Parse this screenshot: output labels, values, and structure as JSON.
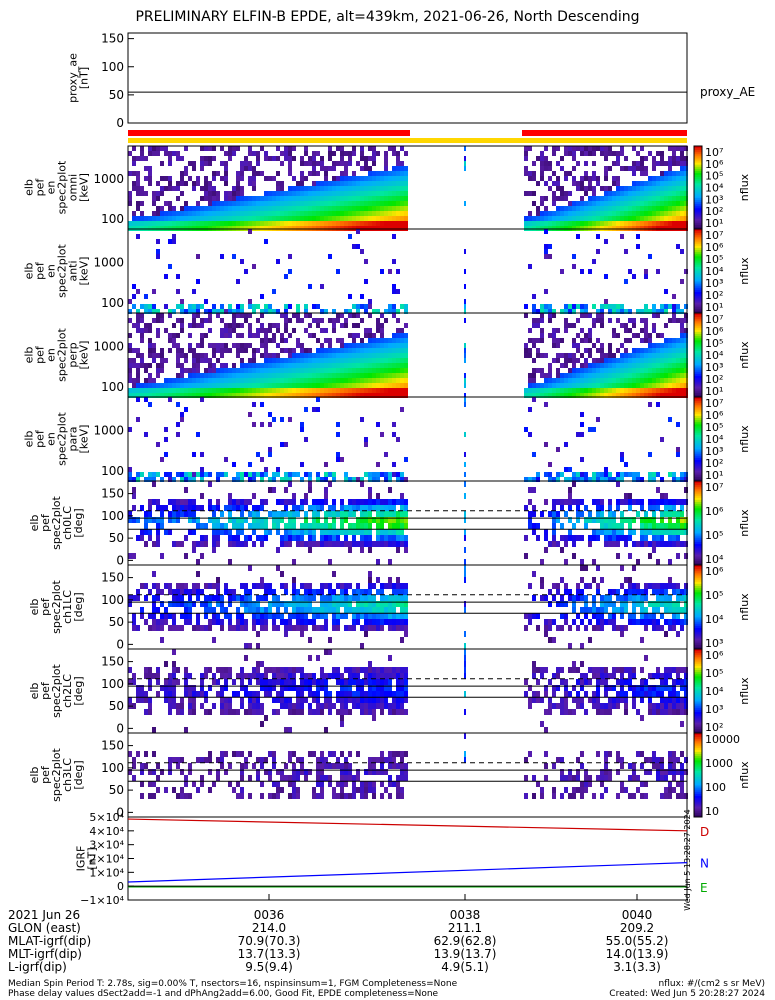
{
  "title": "PRELIMINARY ELFIN-B EPDE, alt=439km, 2021-06-26, North Descending",
  "colors": {
    "red_bar": "#ff0000",
    "yellow_bar": "#ffd700",
    "bd_line": "#cc0000",
    "bn_line": "#0000ff",
    "be_line": "#00aa00",
    "dashed_line": "#000000"
  },
  "chart_data": [
    {
      "type": "line",
      "panel": "proxy_ae",
      "ylabel": "proxy_ae\n[nT]",
      "yticks": [
        "150",
        "100",
        "50",
        "0"
      ],
      "ylim": [
        0,
        160
      ],
      "series": [
        {
          "name": "proxy_AE",
          "values": [
            55,
            55,
            55,
            55
          ]
        }
      ],
      "legend": "proxy_AE"
    },
    {
      "type": "heatmap",
      "panel": "pef_en_spec2plot_omni",
      "ylabel": "elb\npef\nen\nspec2plot\nomni\n[keV]",
      "yticks": [
        "1000",
        "100"
      ],
      "yscale": "log",
      "colorbar_label": "nflux",
      "colorbar_ticks": [
        "10⁷",
        "10⁶",
        "10⁵",
        "10⁴",
        "10³",
        "10²",
        "10¹"
      ]
    },
    {
      "type": "heatmap",
      "panel": "pef_en_spec2plot_anti",
      "ylabel": "elb\npef\nen\nspec2plot\nanti\n[keV]",
      "yticks": [
        "1000",
        "100"
      ],
      "yscale": "log",
      "colorbar_label": "nflux",
      "colorbar_ticks": [
        "10⁷",
        "10⁶",
        "10⁵",
        "10⁴",
        "10³",
        "10²",
        "10¹"
      ]
    },
    {
      "type": "heatmap",
      "panel": "pef_en_spec2plot_perp",
      "ylabel": "elb\npef\nen\nspec2plot\nperp\n[keV]",
      "yticks": [
        "1000",
        "100"
      ],
      "yscale": "log",
      "colorbar_label": "nflux",
      "colorbar_ticks": [
        "10⁷",
        "10⁶",
        "10⁵",
        "10⁴",
        "10³",
        "10²",
        "10¹"
      ]
    },
    {
      "type": "heatmap",
      "panel": "pef_en_spec2plot_para",
      "ylabel": "elb\npef\nen\nspec2plot\npara\n[keV]",
      "yticks": [
        "1000",
        "100"
      ],
      "yscale": "log",
      "colorbar_label": "nflux",
      "colorbar_ticks": [
        "10⁷",
        "10⁶",
        "10⁵",
        "10⁴",
        "10³",
        "10²",
        "10¹"
      ]
    },
    {
      "type": "heatmap",
      "panel": "pef_spec2plot_ch0LC",
      "ylabel": "elb\npef\nspec2plot\nch0LC\n[deg]",
      "yticks": [
        "150",
        "100",
        "50",
        "0"
      ],
      "colorbar_label": "nflux",
      "colorbar_ticks": [
        "10⁷",
        "10⁶",
        "10⁵",
        "10⁴"
      ]
    },
    {
      "type": "heatmap",
      "panel": "pef_spec2plot_ch1LC",
      "ylabel": "elb\npef\nspec2plot\nch1LC\n[deg]",
      "yticks": [
        "150",
        "100",
        "50",
        "0"
      ],
      "colorbar_label": "nflux",
      "colorbar_ticks": [
        "10⁶",
        "10⁵",
        "10⁴",
        "10³"
      ]
    },
    {
      "type": "heatmap",
      "panel": "pef_spec2plot_ch2LC",
      "ylabel": "elb\npef\nspec2plot\nch2LC\n[deg]",
      "yticks": [
        "150",
        "100",
        "50",
        "0"
      ],
      "colorbar_label": "nflux",
      "colorbar_ticks": [
        "10⁶",
        "10⁵",
        "10⁴",
        "10³",
        "10²"
      ]
    },
    {
      "type": "heatmap",
      "panel": "pef_spec2plot_ch3LC",
      "ylabel": "elb\npef\nspec2plot\nch3LC\n[deg]",
      "yticks": [
        "150",
        "100",
        "50",
        "0"
      ],
      "colorbar_label": "nflux",
      "colorbar_ticks": [
        "10000",
        "1000",
        "100",
        "10"
      ]
    },
    {
      "type": "line",
      "panel": "IGRF",
      "ylabel": "IGRF\n[nT]",
      "yticks": [
        "5×10⁴",
        "4×10⁴",
        "3×10⁴",
        "2×10⁴",
        "1×10⁴",
        "0",
        "−1×10⁴"
      ],
      "ylim": [
        -10000,
        50000
      ],
      "x": [
        "0035",
        "0041"
      ],
      "series": [
        {
          "name": "D",
          "values": [
            48500,
            40000
          ]
        },
        {
          "name": "N",
          "values": [
            3000,
            17000
          ]
        },
        {
          "name": "E",
          "values": [
            -500,
            -500
          ]
        }
      ]
    }
  ],
  "xaxis": {
    "ticks": [
      "0036",
      "0038",
      "0040"
    ],
    "rows": [
      {
        "label": "2021 Jun 26",
        "values": [
          "0036",
          "0038",
          "0040"
        ]
      },
      {
        "label": "GLON (east)",
        "values": [
          "214.0",
          "211.1",
          "209.2"
        ]
      },
      {
        "label": "MLAT-igrf(dip)",
        "values": [
          "70.9(70.3)",
          "62.9(62.8)",
          "55.0(55.2)"
        ]
      },
      {
        "label": "MLT-igrf(dip)",
        "values": [
          "13.7(13.3)",
          "13.9(13.7)",
          "14.0(13.9)"
        ]
      },
      {
        "label": "L-igrf(dip)",
        "values": [
          "9.5(9.4)",
          "4.9(5.1)",
          "3.1(3.3)"
        ]
      }
    ]
  },
  "side_timestamp": "Wed Jun 5 13:28:27 2024",
  "footer": {
    "line1_left": "Median Spin Period T: 2.78s, sig=0.00% T, nsectors=16, nspinsinsum=1, FGM Completeness=None",
    "line1_right": "nflux: #/(cm2 s sr MeV)",
    "line2_left": "Phase delay values dSect2add=-1 and dPhAng2add=6.00, Good Fit, EPDE completeness=None",
    "line2_right": "Created: Wed Jun  5 20:28:27 2024"
  }
}
